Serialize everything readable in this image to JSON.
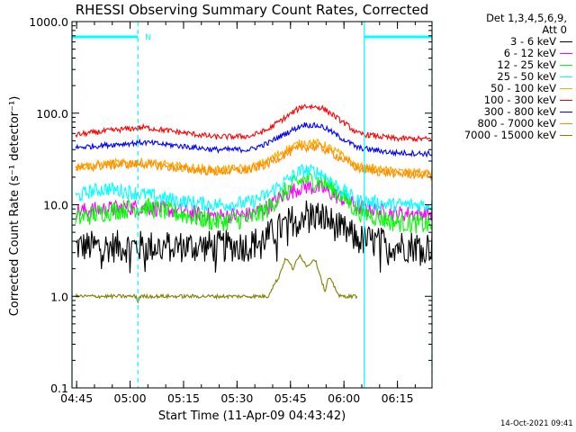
{
  "chart_data": {
    "type": "line",
    "title": "RHESSI Observing Summary Count Rates, Corrected",
    "xlabel": "Start Time (11-Apr-09 04:43:42)",
    "ylabel": "Corrected Count Rate (s⁻¹ detector⁻¹)",
    "yscale": "log",
    "ylim": [
      0.1,
      1000
    ],
    "xlim_min": [
      0,
      101
    ],
    "x_unit": "minutes after 04:43:42",
    "x_tick_labels": [
      "04:45",
      "05:00",
      "05:15",
      "05:30",
      "05:45",
      "06:00",
      "06:15"
    ],
    "y_tick_labels": [
      "0.1",
      "1.0",
      "10.0",
      "100.0",
      "1000.0"
    ],
    "legend_title": [
      "Det 1,3,4,5,6,9,",
      "Att 0"
    ],
    "legend_position": "right",
    "timestamp": "14-Oct-2021 09:41",
    "markers": {
      "flag_label": "N",
      "flag_bars_min": [
        [
          0,
          18.5
        ],
        [
          82,
          101
        ]
      ],
      "cyan_dashed_min": [
        18.5,
        101
      ],
      "cyan_solid_min": [
        0,
        82
      ]
    },
    "series": [
      {
        "name": "3 - 6 keV",
        "color": "#000000",
        "x": [
          1,
          10,
          20,
          30,
          40,
          50,
          55,
          60,
          65,
          70,
          75,
          80,
          90,
          101
        ],
        "y": [
          3.5,
          3.5,
          3.5,
          3.5,
          3.5,
          3.6,
          4.5,
          6.0,
          8.0,
          7.5,
          5.5,
          4.2,
          3.6,
          3.5
        ]
      },
      {
        "name": "6 - 12 keV",
        "color": "#ff00ff",
        "x": [
          1,
          10,
          20,
          30,
          40,
          50,
          55,
          60,
          65,
          70,
          75,
          80,
          90,
          101
        ],
        "y": [
          8.5,
          9.0,
          9.5,
          8.5,
          7.5,
          7.8,
          9.5,
          13,
          16,
          15,
          12,
          9.5,
          8.0,
          8.0
        ]
      },
      {
        "name": "12 - 25 keV",
        "color": "#00ff00",
        "x": [
          1,
          10,
          20,
          30,
          40,
          50,
          55,
          60,
          65,
          70,
          75,
          80,
          90,
          101
        ],
        "y": [
          7.0,
          8.5,
          9.5,
          8.0,
          6.5,
          7.0,
          9.0,
          14,
          19,
          18,
          13,
          8.5,
          6.5,
          6.0
        ]
      },
      {
        "name": "25 - 50 keV",
        "color": "#00ffff",
        "x": [
          1,
          5,
          10,
          20,
          30,
          40,
          50,
          55,
          60,
          65,
          70,
          75,
          80,
          90,
          101
        ],
        "y": [
          12,
          14,
          15,
          13,
          11,
          10,
          10.5,
          13,
          18,
          24,
          22,
          15,
          11,
          10,
          10
        ]
      },
      {
        "name": "50 - 100 keV",
        "color": "#ffaa00",
        "x": [
          1,
          10,
          20,
          30,
          40,
          50,
          55,
          60,
          65,
          70,
          75,
          80,
          90,
          101
        ],
        "y": [
          26,
          28,
          29,
          26,
          24,
          25,
          30,
          40,
          48,
          46,
          36,
          26,
          23,
          22
        ]
      },
      {
        "name": "100 - 300 keV",
        "color": "#ff0000",
        "x": [
          1,
          10,
          20,
          30,
          40,
          50,
          55,
          60,
          65,
          70,
          75,
          80,
          90,
          101
        ],
        "y": [
          58,
          64,
          70,
          62,
          55,
          56,
          66,
          90,
          120,
          115,
          85,
          60,
          53,
          52
        ]
      },
      {
        "name": "300 - 800 keV",
        "color": "#0000ff",
        "x": [
          1,
          10,
          20,
          30,
          40,
          50,
          55,
          60,
          65,
          70,
          75,
          80,
          90,
          101
        ],
        "y": [
          42,
          45,
          48,
          44,
          40,
          40,
          47,
          60,
          75,
          72,
          55,
          42,
          37,
          36
        ]
      },
      {
        "name": "800 - 7000 keV",
        "color": "#ff8c00",
        "x": [
          1,
          10,
          20,
          30,
          40,
          50,
          55,
          60,
          65,
          70,
          75,
          80,
          90,
          101
        ],
        "y": [
          25,
          27,
          28,
          25,
          23,
          24,
          28,
          36,
          43,
          42,
          33,
          25,
          22,
          21
        ]
      },
      {
        "name": "7000 - 15000 keV",
        "color": "#808000",
        "x": [
          1,
          18,
          18.5,
          19,
          30,
          55,
          58,
          60,
          62,
          64,
          66,
          68,
          70,
          71,
          72,
          75,
          78,
          80
        ],
        "y": [
          1.0,
          1.0,
          0.85,
          1.0,
          1.0,
          1.0,
          1.6,
          2.6,
          2.0,
          2.8,
          2.1,
          2.6,
          1.5,
          1.1,
          1.6,
          1.0,
          1.0,
          1.0
        ]
      }
    ]
  }
}
